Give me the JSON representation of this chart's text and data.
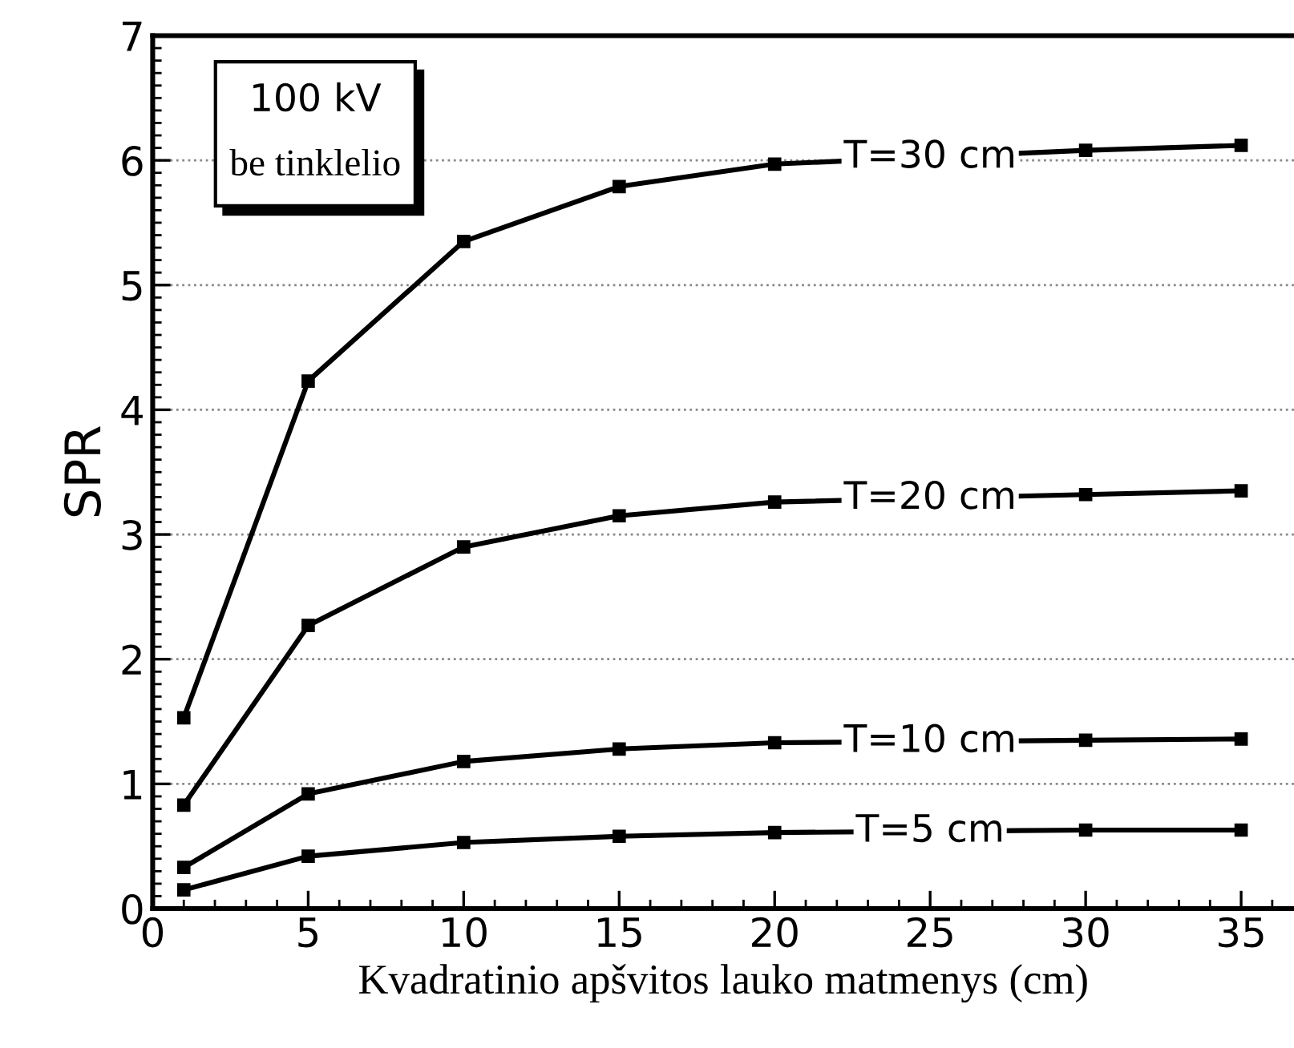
{
  "chart_data": {
    "type": "line",
    "xlabel": "Kvadratinio apšvitos lauko matmenys (cm)",
    "ylabel": "SPR",
    "x": [
      1,
      5,
      10,
      15,
      20,
      30,
      35
    ],
    "series": [
      {
        "name": "T=30 cm",
        "color": "#000000",
        "values": [
          1.53,
          4.23,
          5.35,
          5.79,
          5.97,
          6.08,
          6.12
        ]
      },
      {
        "name": "T=20 cm",
        "color": "#000000",
        "values": [
          0.83,
          2.27,
          2.9,
          3.15,
          3.26,
          3.32,
          3.35
        ]
      },
      {
        "name": "T=10 cm",
        "color": "#000000",
        "values": [
          0.33,
          0.92,
          1.18,
          1.28,
          1.33,
          1.35,
          1.36
        ]
      },
      {
        "name": "T=5 cm",
        "color": "#000000",
        "values": [
          0.15,
          0.42,
          0.53,
          0.58,
          0.61,
          0.63,
          0.63
        ]
      }
    ],
    "xlim": [
      0,
      36.7
    ],
    "ylim": [
      0,
      7
    ],
    "xticks": [
      0,
      5,
      10,
      15,
      20,
      25,
      30,
      35
    ],
    "yticks": [
      0,
      1,
      2,
      3,
      4,
      5,
      6,
      7
    ],
    "grid": "y",
    "marker": "square",
    "line_style": "solid",
    "annotations": [
      "100 kV",
      "be tinklelio"
    ]
  }
}
